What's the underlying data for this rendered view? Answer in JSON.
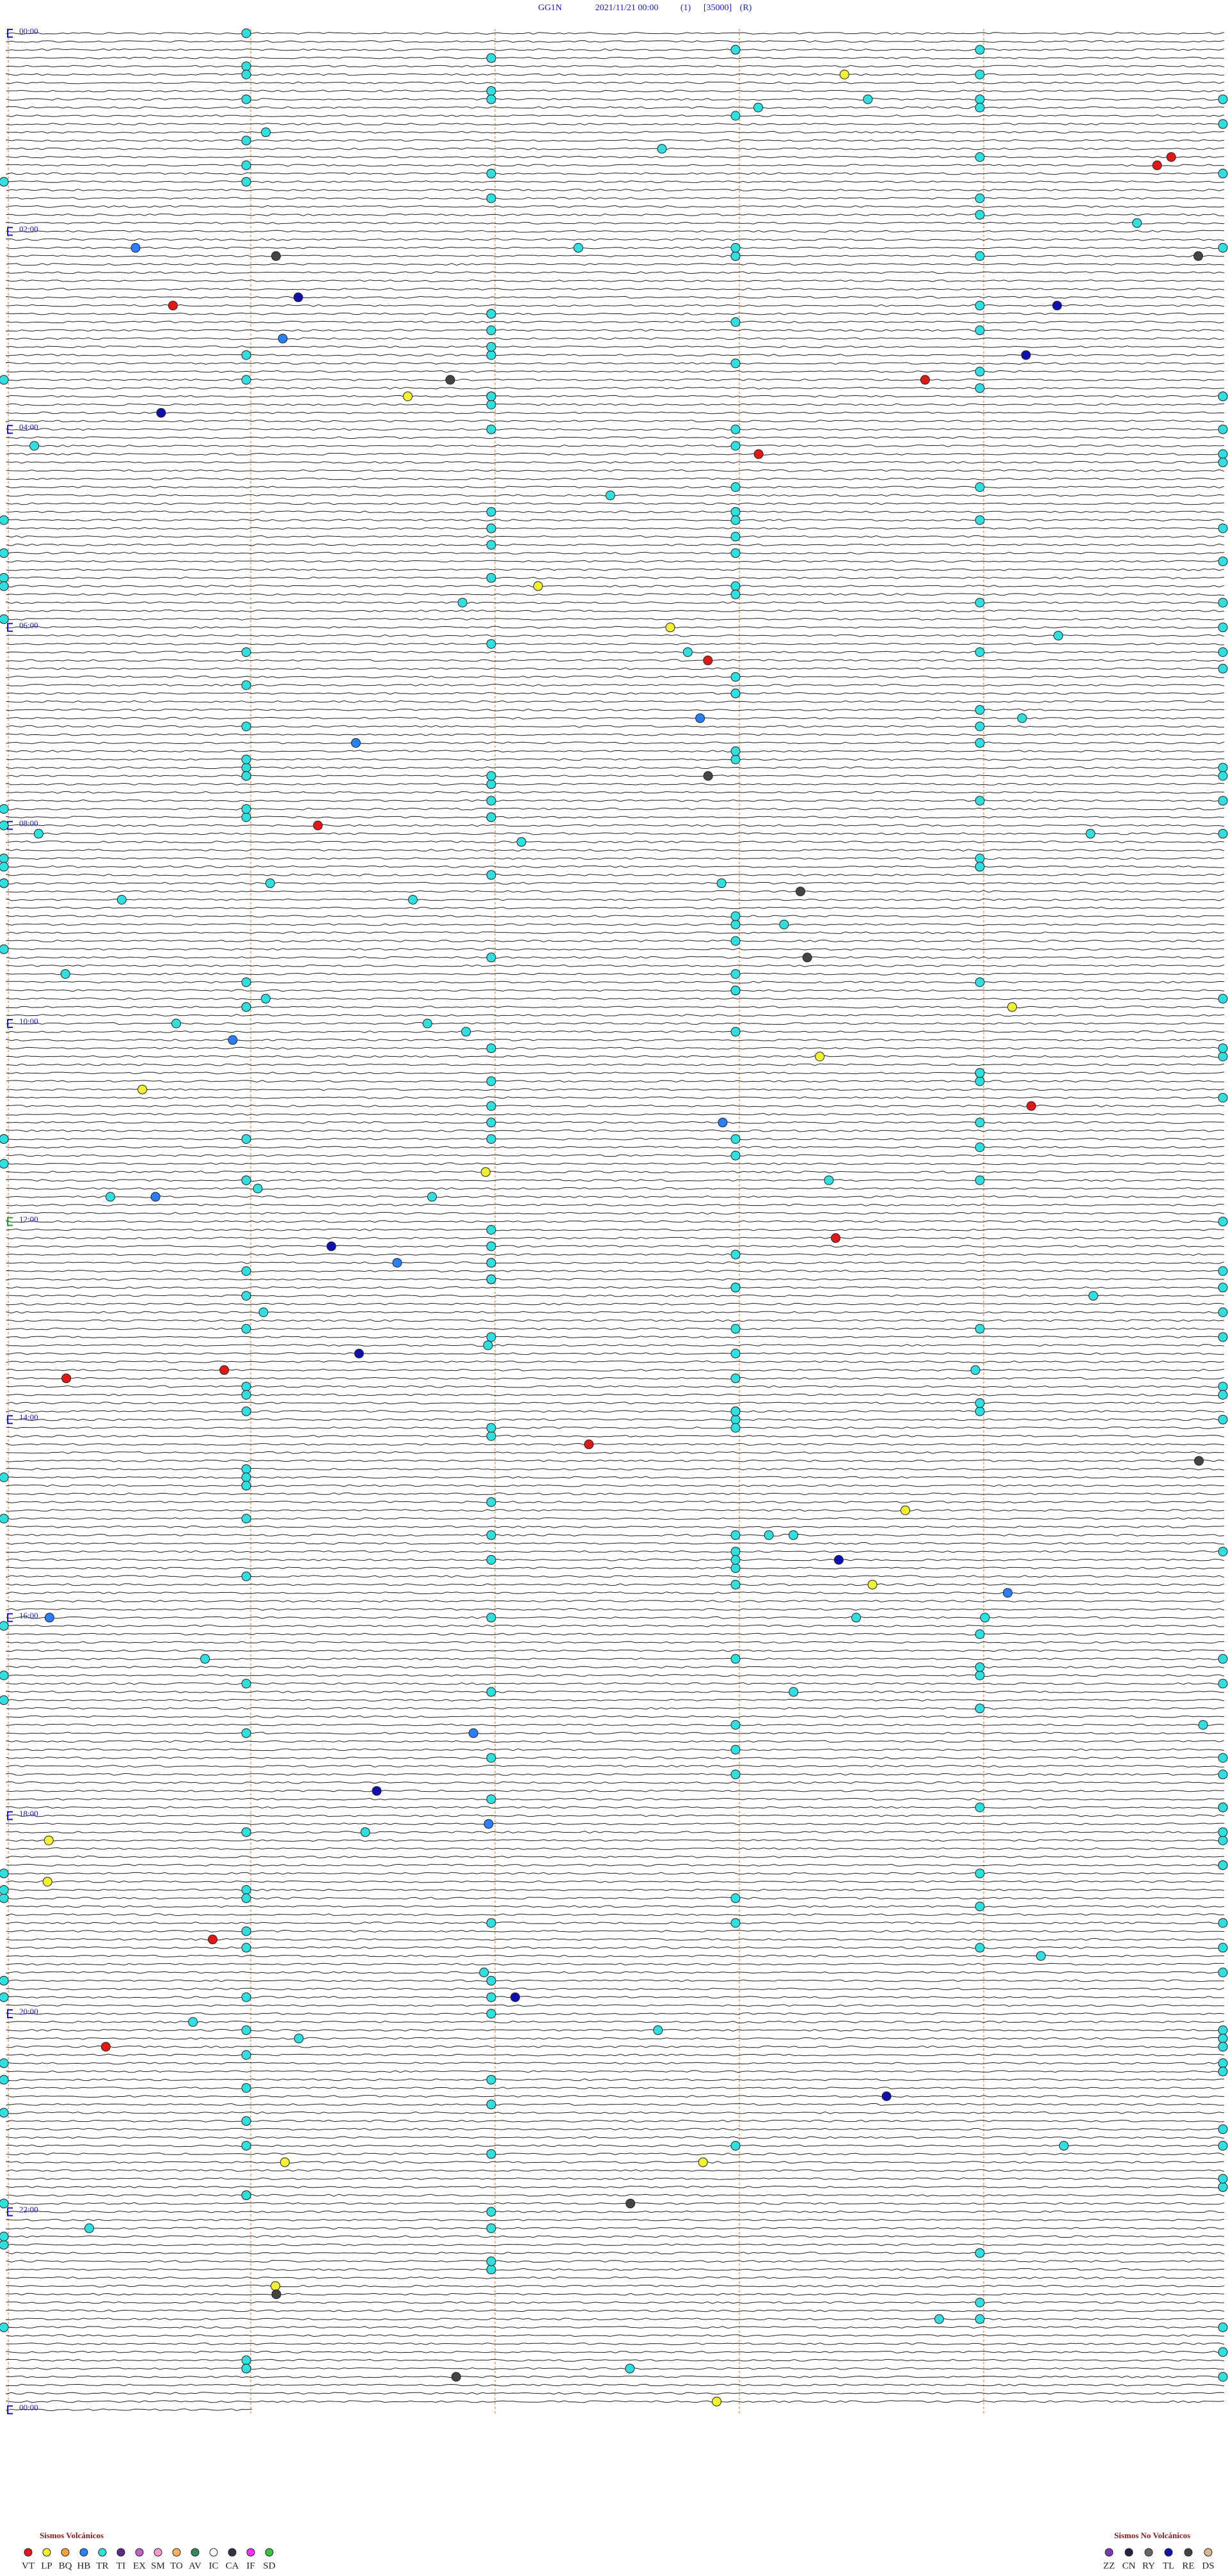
{
  "header": {
    "station": "GG1N",
    "date": "2021/11/21 00:00",
    "channel": "(1)",
    "scale": "[35000]",
    "mode": "(R)"
  },
  "time_labels": [
    "00:00",
    "02:00",
    "04:00",
    "06:00",
    "08:00",
    "10:00",
    "12:00",
    "14:00",
    "16:00",
    "18:00",
    "20:00",
    "22:00",
    "00:00"
  ],
  "legend_volcanic": {
    "title": "Sismos Volcánicos",
    "items": [
      {
        "code": "VT",
        "color": "#e01818"
      },
      {
        "code": "LP",
        "color": "#f2f230"
      },
      {
        "code": "BQ",
        "color": "#ffa040"
      },
      {
        "code": "HB",
        "color": "#2a7fff"
      },
      {
        "code": "TR",
        "color": "#30e0e0"
      },
      {
        "code": "TI",
        "color": "#5a2a8a"
      },
      {
        "code": "EX",
        "color": "#c060c0"
      },
      {
        "code": "SM",
        "color": "#ff9ad0"
      },
      {
        "code": "TO",
        "color": "#ffb060"
      },
      {
        "code": "AV",
        "color": "#2e8b57"
      },
      {
        "code": "IC",
        "color": "#ffffff"
      },
      {
        "code": "CA",
        "color": "#333344"
      },
      {
        "code": "IF",
        "color": "#ff30ff"
      },
      {
        "code": "SD",
        "color": "#40c040"
      }
    ]
  },
  "legend_nonvolcanic": {
    "title": "Sismos No Volcánicos",
    "items": [
      {
        "code": "ZZ",
        "color": "#7a3ab0"
      },
      {
        "code": "CN",
        "color": "#222244"
      },
      {
        "code": "RY",
        "color": "#666666"
      },
      {
        "code": "TL",
        "color": "#1010b0"
      },
      {
        "code": "RE",
        "color": "#444444"
      },
      {
        "code": "DS",
        "color": "#d8b890"
      }
    ]
  }
}
